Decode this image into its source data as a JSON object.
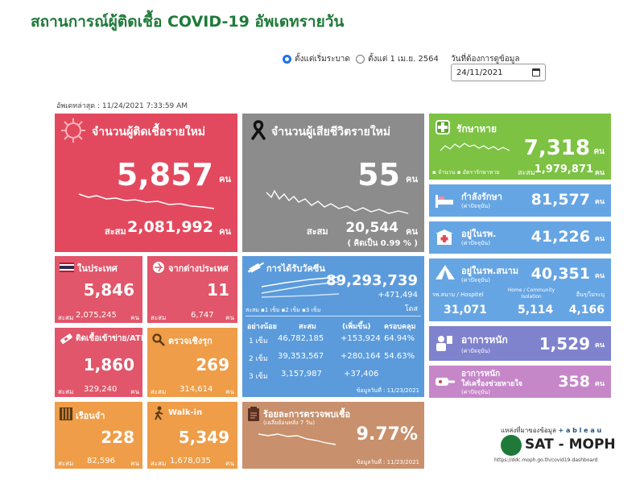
{
  "title": "สถานการณ์ผู้ติดเชื้อ COVID-19 อัพเดทรายวัน",
  "controls": {
    "radio1": "ตั้งแต่เริ่มระบาด",
    "radio2": "ตั้งแต่ 1 เม.ย. 2564",
    "date_label": "วันที่ต้องการดูข้อมูล",
    "date_value": "24/11/2021"
  },
  "updated": "อัพเดทล่าสุด : 11/24/2021 7:33:59 AM",
  "new_cases": {
    "label": "จำนวนผู้ติดเชื้อรายใหม่",
    "value": "5,857",
    "unit": "คน",
    "cum_label": "สะสม",
    "cum": "2,081,992",
    "cum_unit": "คน"
  },
  "deaths": {
    "label": "จำนวนผู้เสียชีวิตรายใหม่",
    "value": "55",
    "unit": "คน",
    "cum_label": "สะสม",
    "cum": "20,544",
    "cum_unit": "คน",
    "pct": "( คิดเป็น    0.99 % )"
  },
  "recovered": {
    "label": "รักษาหาย",
    "value": "7,318",
    "unit": "คน",
    "legend1": "จำนวน",
    "legend2": "อัตรารักษาหาย",
    "cum_label": "สะสม",
    "cum": "1,979,871",
    "cum_unit": "คน"
  },
  "treating": {
    "label": "กำลังรักษา",
    "sub": "(ค่าปัจจุบัน)",
    "value": "81,577",
    "unit": "คน"
  },
  "hospital": {
    "label": "อยู่ในรพ.",
    "sub": "(ค่าปัจจุบัน)",
    "value": "41,226",
    "unit": "คน"
  },
  "field": {
    "label": "อยู่ในรพ.สนาม",
    "sub": "(ค่าปัจจุบัน)",
    "value": "40,351",
    "unit": "คน",
    "c1_label": "รพ.สนาม / Hospitel",
    "c1": "31,071",
    "c2_label": "Home / Community Isolation",
    "c2": "5,114",
    "c3_label": "อื่นๆ/ไม่ระบุ",
    "c3": "4,166"
  },
  "severe": {
    "label": "อาการหนัก",
    "sub": "(ค่าปัจจุบัน)",
    "value": "1,529",
    "unit": "คน"
  },
  "ventilator": {
    "label1": "อาการหนัก",
    "label2": "ใส่เครื่องช่วยหายใจ",
    "sub": "(ค่าปัจจุบัน)",
    "value": "358",
    "unit": "คน"
  },
  "domestic": {
    "label": "ในประเทศ",
    "value": "5,846",
    "cum_label": "สะสม",
    "cum": "2,075,245",
    "unit": "คน"
  },
  "abroad": {
    "label": "จากต่างประเทศ",
    "value": "11",
    "cum_label": "สะสม",
    "cum": "6,747",
    "unit": "คน"
  },
  "atk": {
    "label": "ติดเชื้อเข้าข่าย/ATK",
    "value": "1,860",
    "cum_label": "สะสม",
    "cum": "329,240",
    "unit": "คน"
  },
  "active": {
    "label": "ตรวจเชิงรุก",
    "value": "269",
    "cum_label": "สะสม",
    "cum": "314,614",
    "unit": "คน"
  },
  "prison": {
    "label": "เรือนจำ",
    "value": "228",
    "cum_label": "สะสม",
    "cum": "82,596",
    "unit": "คน"
  },
  "walkin": {
    "label": "Walk-in",
    "value": "5,349",
    "cum_label": "สะสม",
    "cum": "1,678,035",
    "unit": "คน"
  },
  "vaccine": {
    "label": "การได้รับวัคซีน",
    "total": "89,293,739",
    "delta": "+471,494",
    "unit": "โดส",
    "legend_prefix": "สะสม",
    "legend1": "1 เข็ม",
    "legend2": "2 เข็ม",
    "legend3": "3 เข็ม",
    "headers": [
      "อย่างน้อย",
      "สะสม",
      "(เพิ่มขึ้น)",
      "ครอบคลุม"
    ],
    "rows": [
      [
        "1 เข็ม",
        "46,782,185",
        "+153,924",
        "64.94%"
      ],
      [
        "2 เข็ม",
        "39,353,567",
        "+280,164",
        "54.63%"
      ],
      [
        "3 เข็ม",
        "3,157,987",
        "+37,406",
        ""
      ]
    ],
    "asof": "ข้อมูลวันที่ : 11/23/2021"
  },
  "positivity": {
    "label": "ร้อยละการตรวจพบเชื้อ",
    "sub": "(เฉลี่ยย้อนหลัง 7 วัน)",
    "value": "9.77%",
    "asof": "ข้อมูลวันที่ : 11/23/2021"
  },
  "source": {
    "label": "แหล่งที่มาของข้อมูล",
    "tableau": "+ a b l e a u",
    "brand": "SAT - MOPH",
    "url": "https://ddc.moph.go.th/covid19-dashboard"
  },
  "colors": {
    "red": "#e3495e",
    "gray": "#8c8c8c",
    "green": "#7dc243",
    "blue": "#5b9bdc",
    "orange": "#ef9d48",
    "violet": "#7f83cd",
    "pink": "#c687c9",
    "tan": "#c8906c"
  }
}
